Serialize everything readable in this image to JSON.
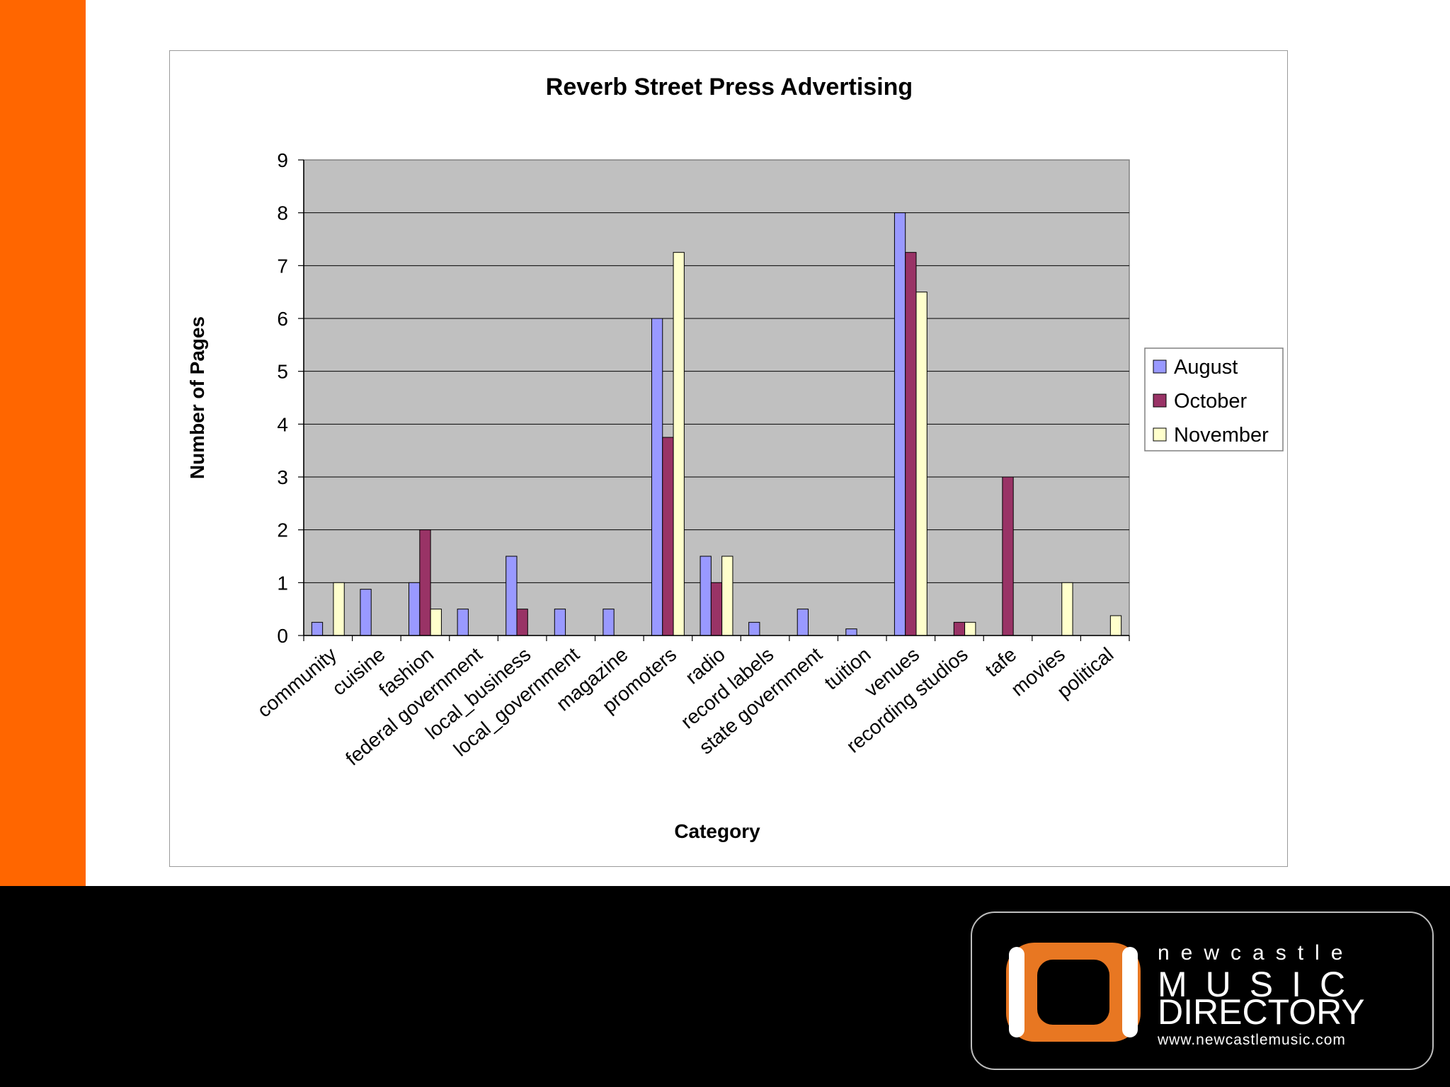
{
  "chart_data": {
    "type": "bar",
    "title": "Reverb Street Press Advertising",
    "xlabel": "Category",
    "ylabel": "Number of Pages",
    "ylim": [
      0,
      9
    ],
    "yticks": [
      "0",
      "1",
      "2",
      "3",
      "4",
      "5",
      "6",
      "7",
      "8",
      "9"
    ],
    "grid": true,
    "legend_position": "right",
    "categories": [
      "community",
      "cuisine",
      "fashion",
      "federal government",
      "local_business",
      "local_government",
      "magazine",
      "promoters",
      "radio",
      "record labels",
      "state government",
      "tuition",
      "venues",
      "recording studios",
      "tafe",
      "movies",
      "political"
    ],
    "series": [
      {
        "name": "August",
        "color": "#9999ff",
        "values": [
          0.25,
          0.875,
          1,
          0.5,
          1.5,
          0.5,
          0.5,
          6,
          1.5,
          0.25,
          0.5,
          0.125,
          8,
          0,
          0,
          0,
          0
        ]
      },
      {
        "name": "October",
        "color": "#993366",
        "values": [
          0,
          0,
          2,
          0,
          0.5,
          0,
          0,
          3.75,
          1,
          0,
          0,
          0,
          7.25,
          0.25,
          3,
          0,
          0
        ]
      },
      {
        "name": "November",
        "color": "#ffffcc",
        "values": [
          1,
          0,
          0.5,
          0,
          0,
          0,
          0,
          7.25,
          1.5,
          0,
          0,
          0,
          6.5,
          0.25,
          0,
          1,
          0.375
        ]
      }
    ],
    "plot_background": "#c0c0c0"
  },
  "colors": {
    "accent_bar": "#ff6600",
    "footer": "#000000",
    "logo_orange": "#e87722"
  },
  "logo": {
    "line1": "newcastle",
    "line2": "MUSIC",
    "line3": "DIRECTORY",
    "line4": "www.newcastlemusic.com"
  }
}
